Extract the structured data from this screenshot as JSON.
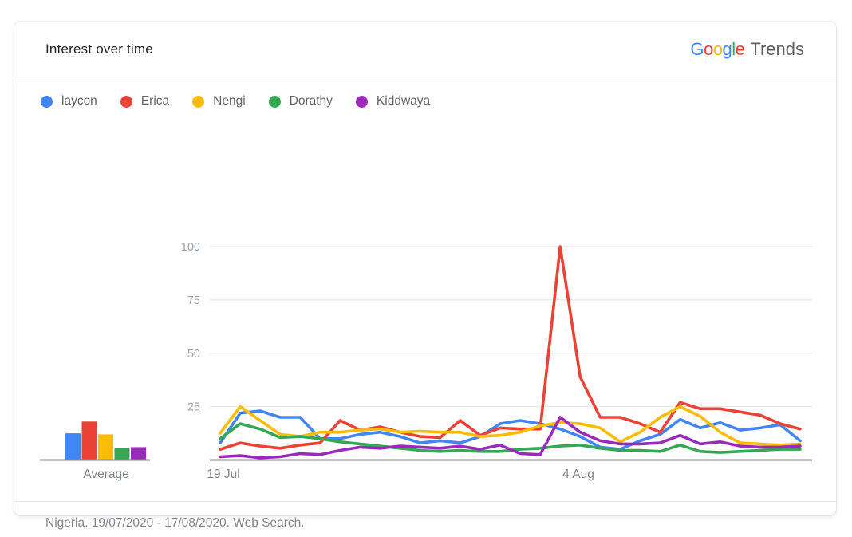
{
  "header": {
    "title": "Interest over time",
    "logo": {
      "letters": [
        {
          "char": "G",
          "color": "#4285F4"
        },
        {
          "char": "o",
          "color": "#EA4335"
        },
        {
          "char": "o",
          "color": "#FBBC05"
        },
        {
          "char": "g",
          "color": "#4285F4"
        },
        {
          "char": "l",
          "color": "#34A853"
        },
        {
          "char": "e",
          "color": "#EA4335"
        }
      ],
      "suffix": "Trends"
    }
  },
  "chart_data": {
    "type": "line",
    "title": "Interest over time",
    "x_axis": {
      "tick_labels": [
        "19 Jul",
        "4 Aug"
      ],
      "start_date": "19/07/2020",
      "end_date": "17/08/2020",
      "num_points": 30
    },
    "y_axis": {
      "ticks": [
        25,
        50,
        75,
        100
      ],
      "ylim": [
        0,
        100
      ],
      "grid": true
    },
    "average_chart": {
      "label": "Average"
    },
    "series": [
      {
        "name": "laycon",
        "color": "#4285F4",
        "average": 12.5,
        "values": [
          8,
          22,
          23,
          20,
          20,
          10,
          10,
          12,
          13,
          11,
          8,
          9,
          8,
          11,
          17,
          18.5,
          17,
          14.5,
          11,
          6,
          5,
          9,
          12,
          19,
          15,
          17.5,
          14,
          15,
          16.5,
          9
        ]
      },
      {
        "name": "Erica",
        "color": "#EA4335",
        "average": 18,
        "values": [
          5,
          8,
          6.5,
          5.5,
          7,
          8,
          18.5,
          14,
          15.5,
          13,
          11,
          10.5,
          18.5,
          11.5,
          15,
          14.5,
          14.5,
          100,
          39,
          20,
          20,
          17,
          13,
          27,
          24,
          24,
          22.5,
          21,
          17,
          14.5
        ]
      },
      {
        "name": "Nengi",
        "color": "#FBBC04",
        "average": 12,
        "values": [
          12.5,
          25,
          18.5,
          12,
          11,
          13,
          13,
          14,
          14.5,
          13,
          13.5,
          13,
          13,
          11,
          11.5,
          13,
          16,
          17.5,
          17,
          15,
          8.5,
          13,
          20,
          25,
          20.5,
          13,
          8,
          7.5,
          7,
          7.5
        ]
      },
      {
        "name": "Dorathy",
        "color": "#34A853",
        "average": 5.5,
        "values": [
          10,
          17,
          14.5,
          10.5,
          11,
          10,
          8.5,
          7.5,
          6.5,
          5.5,
          4.5,
          4,
          4.5,
          4,
          4,
          5,
          5.5,
          6.5,
          7,
          5.5,
          4.5,
          4.5,
          4,
          7,
          4,
          3.5,
          4,
          4.5,
          5,
          5
        ]
      },
      {
        "name": "Kiddwaya",
        "color": "#9A2BBA",
        "average": 6,
        "values": [
          1.5,
          2,
          1,
          1.5,
          3,
          2.5,
          4.5,
          6,
          5.5,
          6.5,
          6,
          5.5,
          6.5,
          5,
          7,
          3,
          2.5,
          20,
          13,
          9,
          7.5,
          7.5,
          8,
          11.5,
          7.5,
          8.5,
          6.5,
          6,
          6,
          6.5
        ]
      }
    ]
  },
  "footer": {
    "text": "Nigeria. 19/07/2020 - 17/08/2020. Web Search."
  },
  "style": {
    "grid_color": "#e9e9e9",
    "baseline_color": "#85898d",
    "y_label_color": "#9aa0a6",
    "x_label_color": "#80868b"
  }
}
